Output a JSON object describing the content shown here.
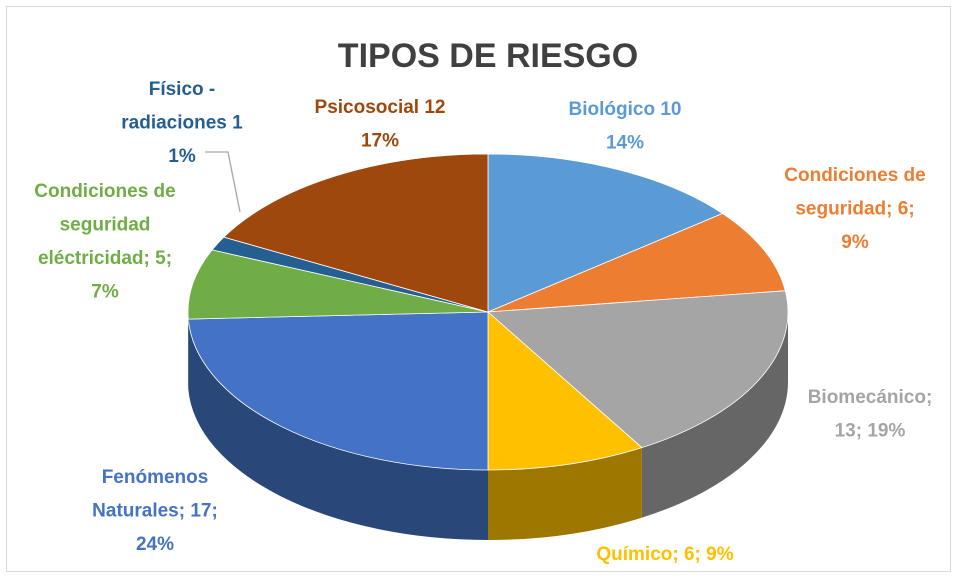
{
  "chart_data": {
    "type": "pie",
    "three_d": true,
    "title": "TIPOS DE RIESGO",
    "values": [
      10,
      6,
      13,
      6,
      17,
      5,
      1,
      12
    ],
    "value_labels": [
      [
        "Biológico 10",
        "14%"
      ],
      [
        "Condiciones de",
        "seguridad; 6;",
        "9%"
      ],
      [
        "Biomecánico;",
        "13; 19%"
      ],
      [
        "Químico; 6; 9%"
      ],
      [
        "Fenómenos",
        "Naturales; 17;",
        "24%"
      ],
      [
        "Condiciones de",
        "seguridad",
        "eléctricidad; 5;",
        "7%"
      ],
      [
        "Físico -",
        "radiaciones 1",
        "1%"
      ],
      [
        "Psicosocial 12",
        "17%"
      ]
    ],
    "colors": [
      "#5b9bd5",
      "#ed7d31",
      "#a5a5a5",
      "#ffc000",
      "#4472c4",
      "#70ad47",
      "#255e91",
      "#9e480e"
    ]
  }
}
